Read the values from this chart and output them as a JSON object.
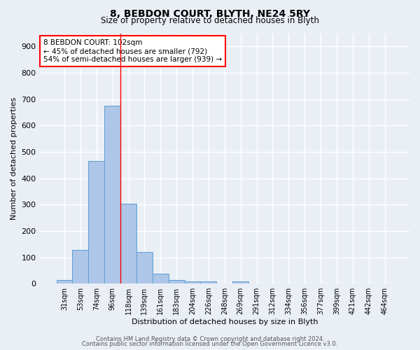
{
  "title1": "8, BEBDON COURT, BLYTH, NE24 5RY",
  "title2": "Size of property relative to detached houses in Blyth",
  "xlabel": "Distribution of detached houses by size in Blyth",
  "ylabel": "Number of detached properties",
  "bar_labels": [
    "31sqm",
    "53sqm",
    "74sqm",
    "96sqm",
    "118sqm",
    "139sqm",
    "161sqm",
    "183sqm",
    "204sqm",
    "226sqm",
    "248sqm",
    "269sqm",
    "291sqm",
    "312sqm",
    "334sqm",
    "356sqm",
    "377sqm",
    "399sqm",
    "421sqm",
    "442sqm",
    "464sqm"
  ],
  "bar_heights": [
    15,
    128,
    465,
    675,
    303,
    120,
    38,
    15,
    8,
    8,
    0,
    8,
    0,
    0,
    0,
    0,
    0,
    0,
    0,
    0,
    0
  ],
  "bar_color": "#aec6e8",
  "bar_edge_color": "#5a9fd4",
  "background_color": "#eaeff6",
  "grid_color": "#ffffff",
  "annotation_text": "8 BEBDON COURT: 102sqm\n← 45% of detached houses are smaller (792)\n54% of semi-detached houses are larger (939) →",
  "red_line_x": 3.5,
  "ylim": [
    0,
    950
  ],
  "yticks": [
    0,
    100,
    200,
    300,
    400,
    500,
    600,
    700,
    800,
    900
  ],
  "footer1": "Contains HM Land Registry data © Crown copyright and database right 2024.",
  "footer2": "Contains public sector information licensed under the Open Government Licence v3.0."
}
